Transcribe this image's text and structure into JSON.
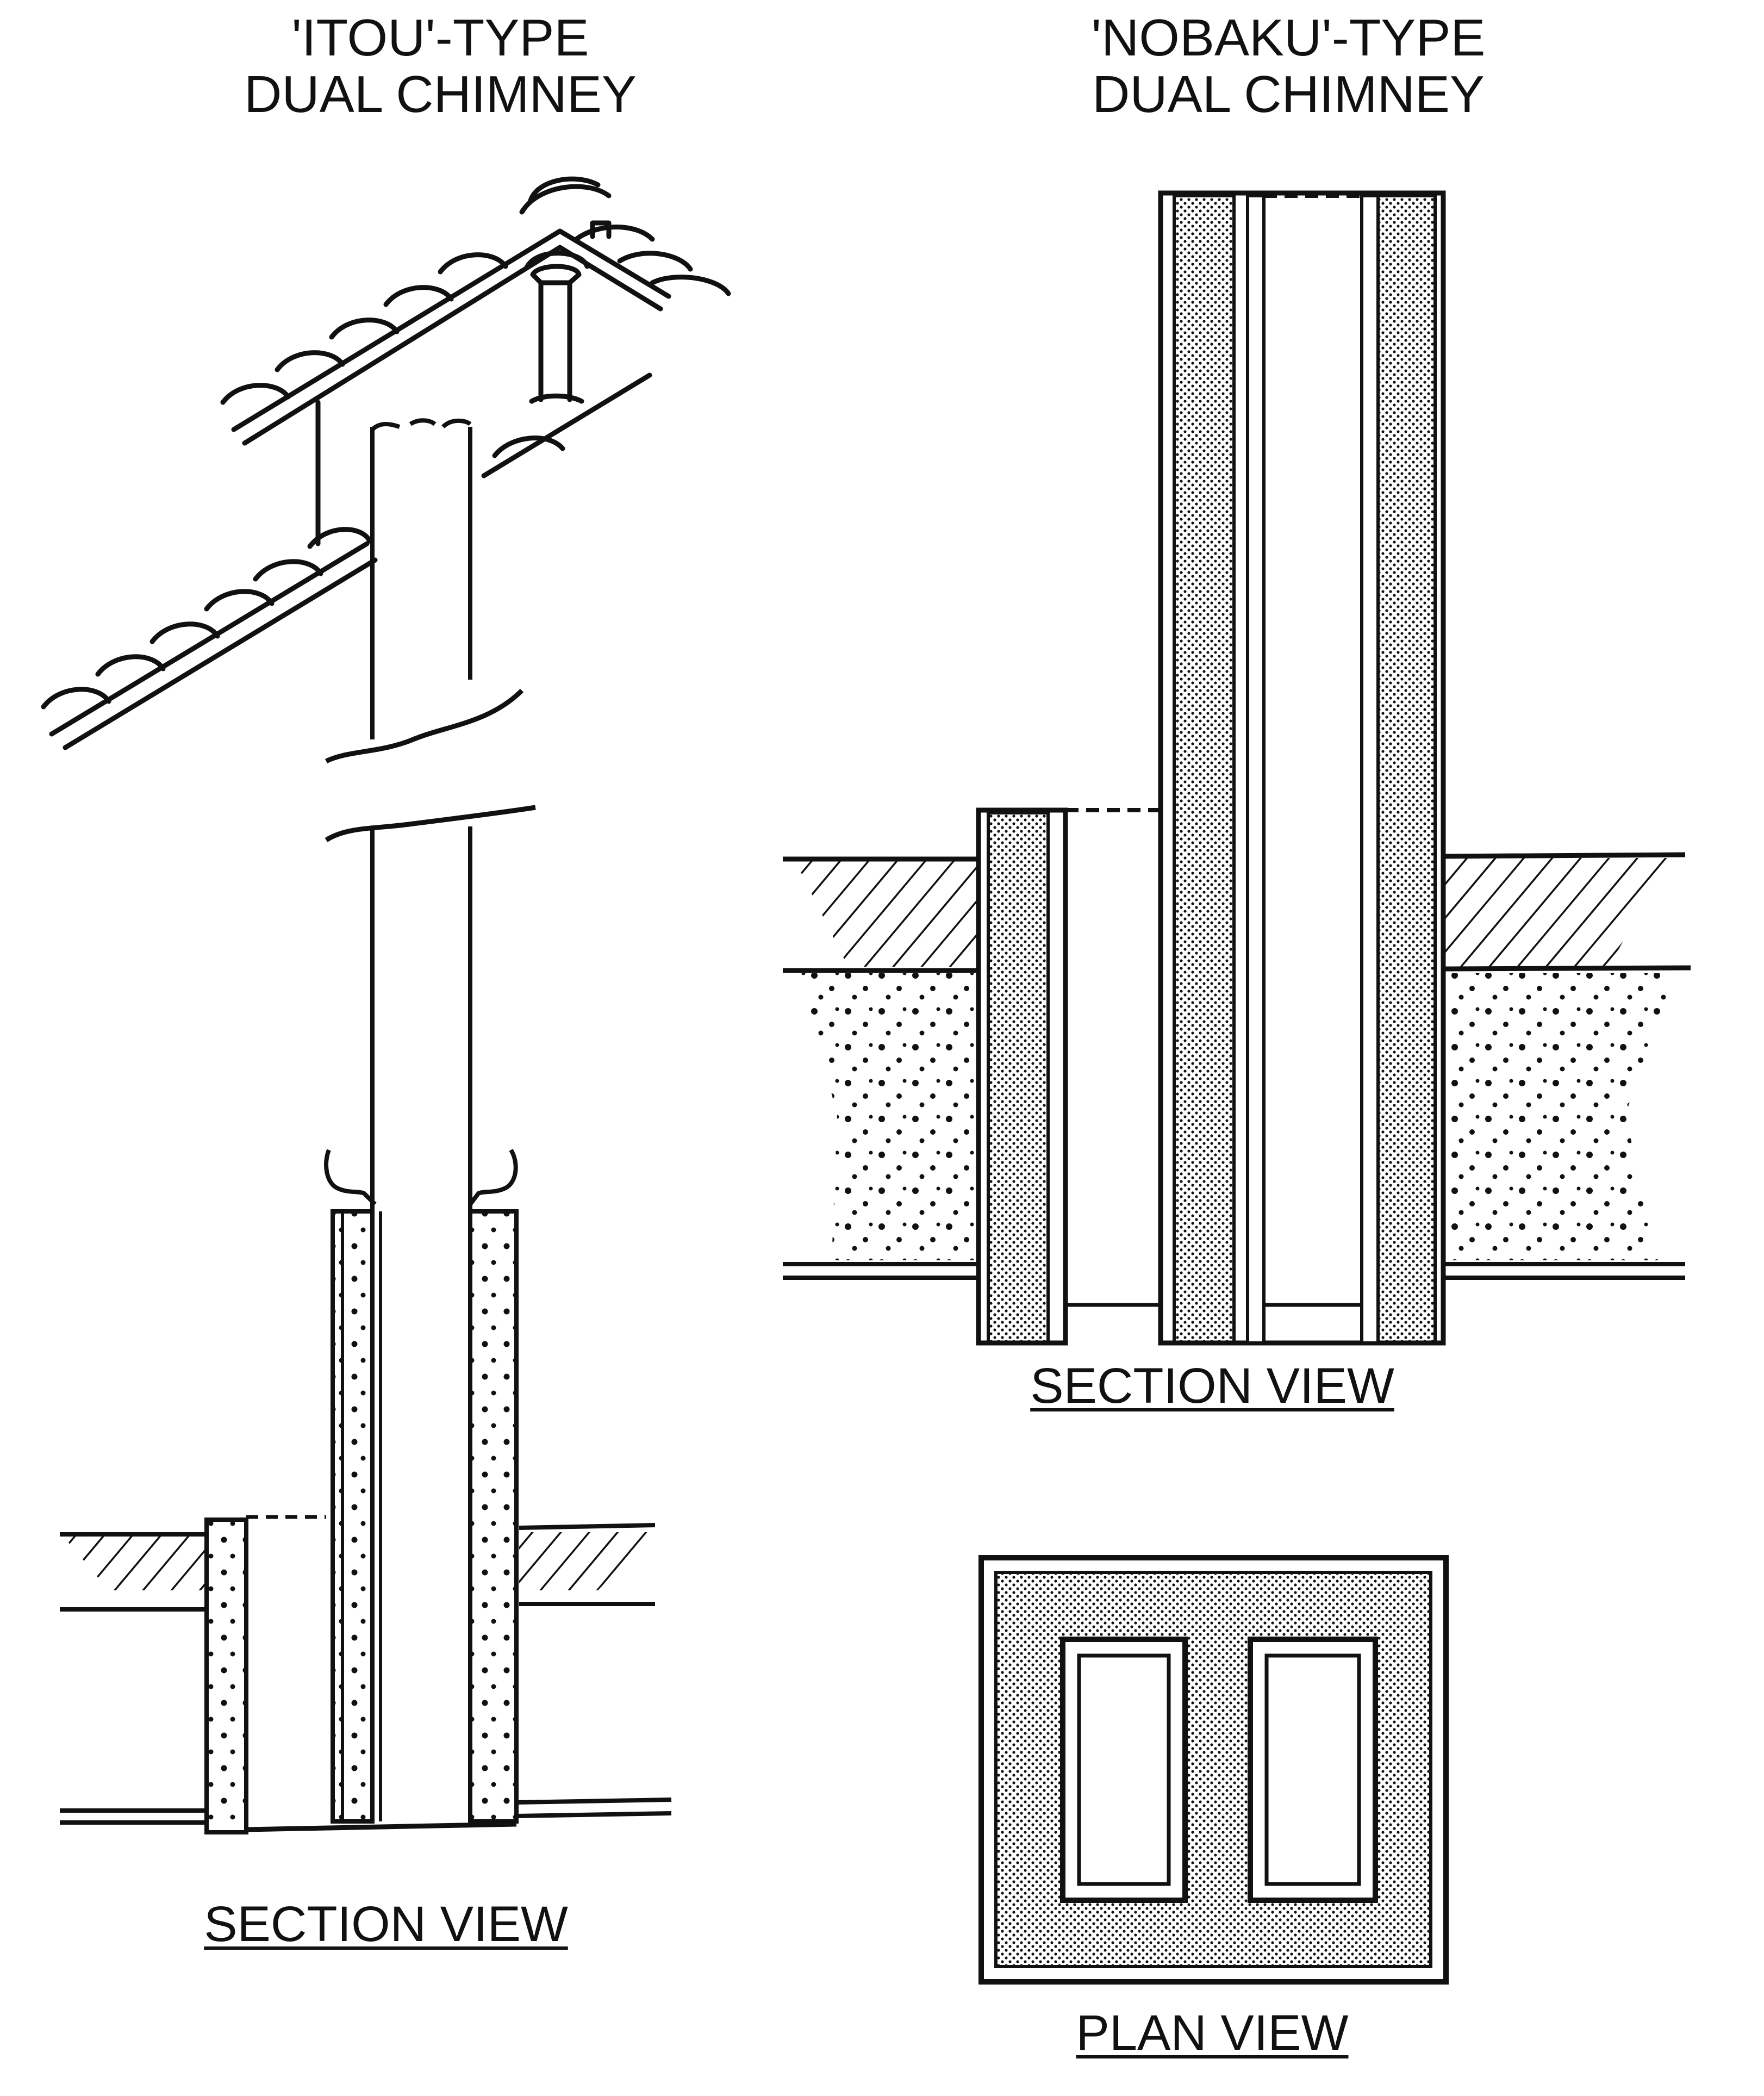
{
  "titles": {
    "itou_line1": "'ITOU'-TYPE",
    "itou_line2": "DUAL CHIMNEY",
    "nobaku_line1": "'NOBAKU'-TYPE",
    "nobaku_line2": "DUAL CHIMNEY"
  },
  "captions": {
    "itou_section": "SECTION VIEW",
    "nobaku_section": "SECTION VIEW",
    "nobaku_plan": "PLAN VIEW"
  },
  "colors": {
    "ink": "#111111",
    "paper": "#ffffff"
  }
}
